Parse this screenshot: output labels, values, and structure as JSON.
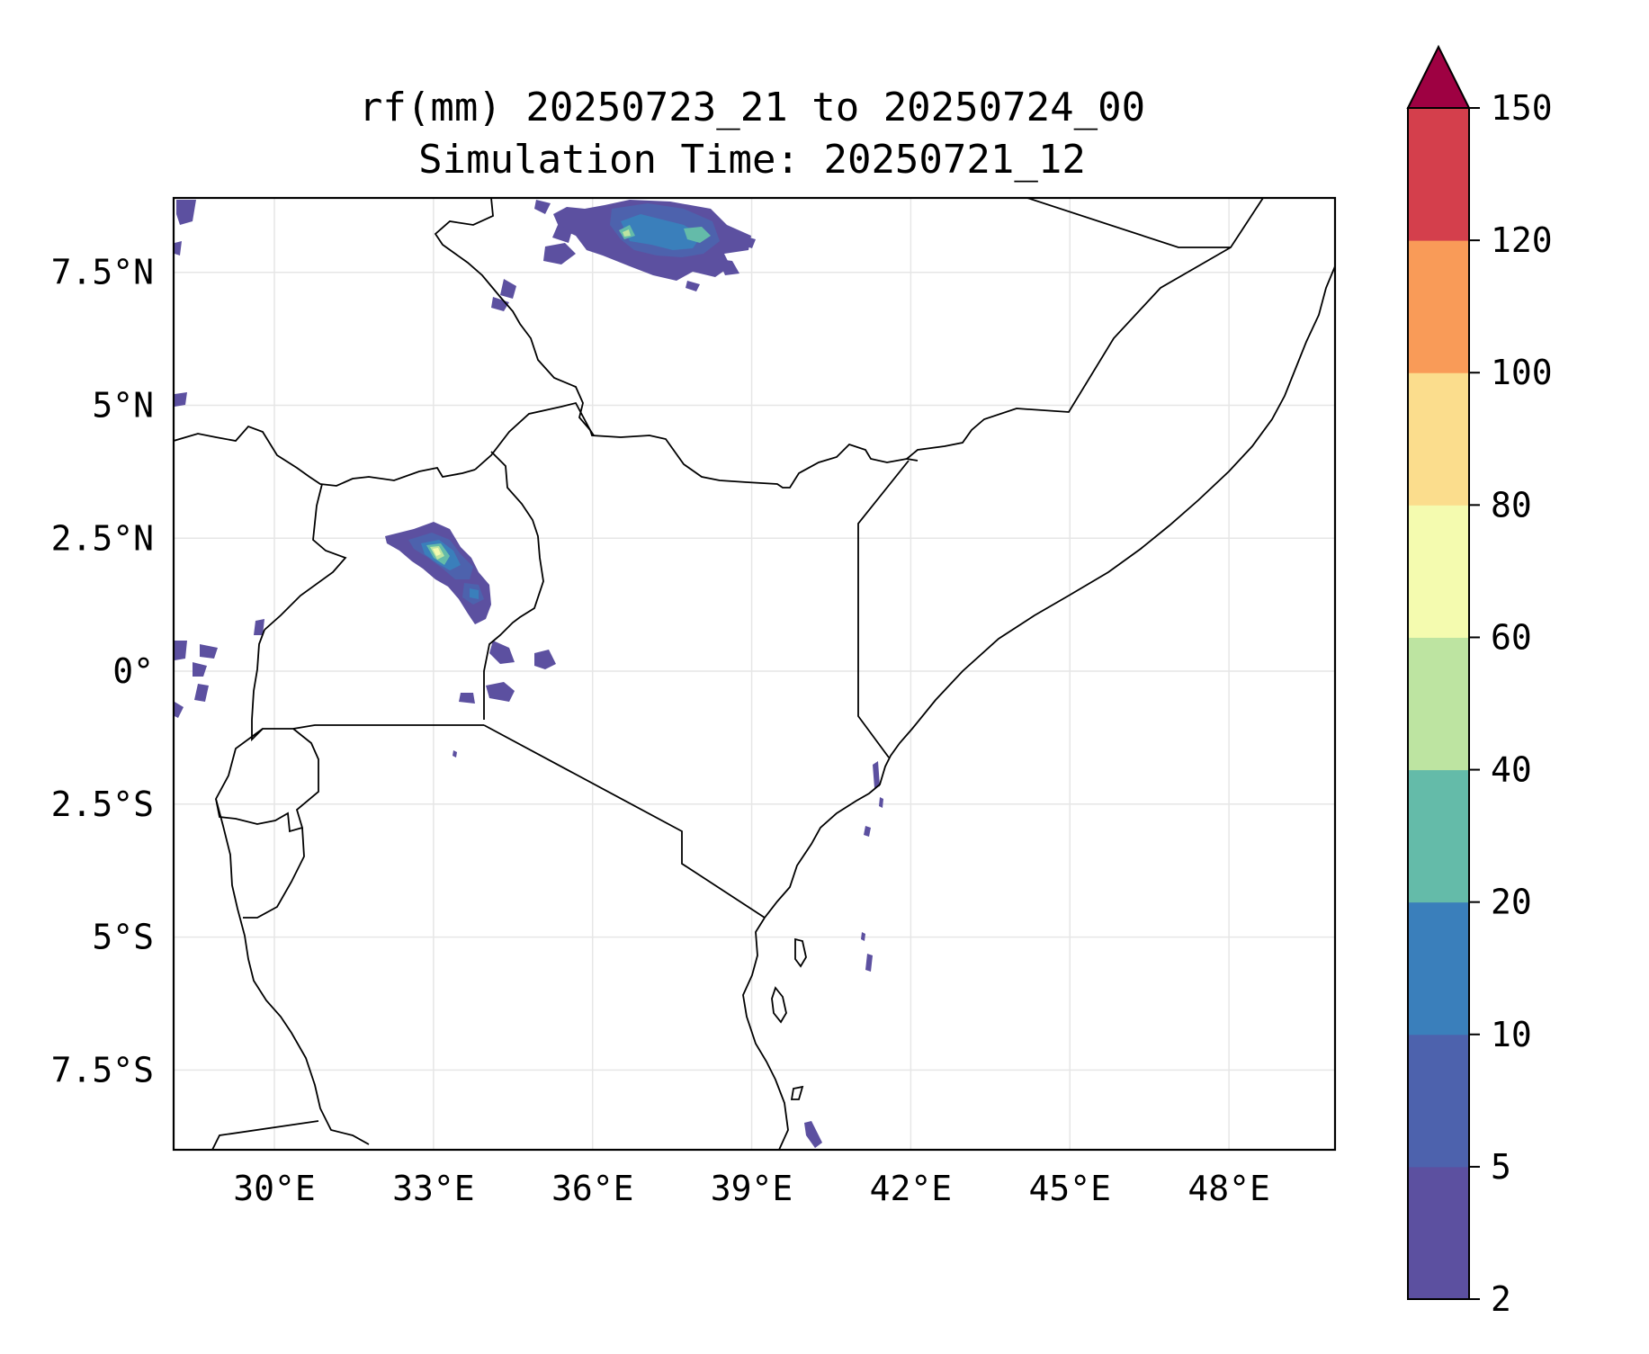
{
  "title": {
    "line1": "rf(mm) 20250723_21 to 20250724_00",
    "line2": "Simulation Time: 20250721_12"
  },
  "map": {
    "lon_range": [
      28.1,
      50.0
    ],
    "lat_range": [
      -9.0,
      8.9
    ],
    "lon_ticks": [
      {
        "value": 30,
        "label": "30°E"
      },
      {
        "value": 33,
        "label": "33°E"
      },
      {
        "value": 36,
        "label": "36°E"
      },
      {
        "value": 39,
        "label": "39°E"
      },
      {
        "value": 42,
        "label": "42°E"
      },
      {
        "value": 45,
        "label": "45°E"
      },
      {
        "value": 48,
        "label": "48°E"
      }
    ],
    "lat_ticks": [
      {
        "value": 7.5,
        "label": "7.5°N"
      },
      {
        "value": 5,
        "label": "5°N"
      },
      {
        "value": 2.5,
        "label": "2.5°N"
      },
      {
        "value": 0,
        "label": "0°"
      },
      {
        "value": -2.5,
        "label": "2.5°S"
      },
      {
        "value": -5,
        "label": "5°S"
      },
      {
        "value": -7.5,
        "label": "7.5°S"
      }
    ],
    "gridline_color": "#e6e6e6",
    "border_color": "#000000"
  },
  "colorbar": {
    "levels": [
      2,
      5,
      10,
      20,
      40,
      60,
      80,
      100,
      120,
      150
    ],
    "labels": [
      "2",
      "5",
      "10",
      "20",
      "40",
      "60",
      "80",
      "100",
      "120",
      "150"
    ],
    "colors": [
      "#5c50a0",
      "#4d62ad",
      "#3a7fbb",
      "#64bba9",
      "#bde4a1",
      "#f4fbaf",
      "#fbdd8d",
      "#f99b58",
      "#d43f4c"
    ],
    "extend_color": "#9e0142"
  }
}
